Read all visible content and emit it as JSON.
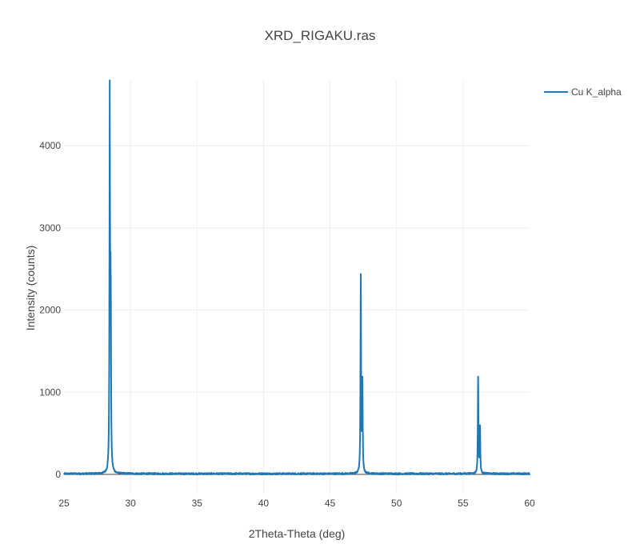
{
  "chart_data": {
    "type": "line",
    "title": "XRD_RIGAKU.ras",
    "xlabel": "2Theta-Theta (deg)",
    "ylabel": "Intensity (counts)",
    "xlim": [
      25,
      60
    ],
    "ylim": [
      -200,
      4700
    ],
    "xticks": [
      25,
      30,
      35,
      40,
      45,
      50,
      55,
      60
    ],
    "yticks": [
      0,
      1000,
      2000,
      3000,
      4000
    ],
    "grid": true,
    "legend": "top-right",
    "baseline_counts": 8,
    "series": [
      {
        "name": "Cu K_alpha",
        "color": "#1f77b4",
        "peaks": [
          {
            "x": 28.44,
            "y": 4540
          },
          {
            "x": 28.51,
            "y": 2350
          },
          {
            "x": 47.31,
            "y": 2440
          },
          {
            "x": 47.43,
            "y": 1190
          },
          {
            "x": 56.13,
            "y": 1190
          },
          {
            "x": 56.27,
            "y": 600
          }
        ]
      }
    ]
  }
}
